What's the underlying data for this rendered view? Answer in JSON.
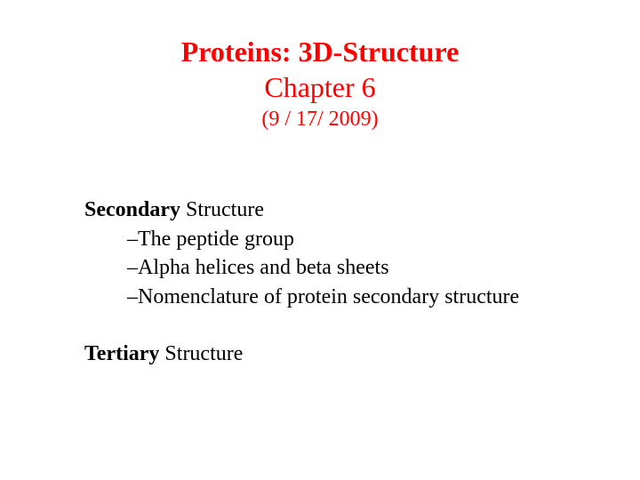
{
  "colors": {
    "title": "#ff0000",
    "body": "#000000",
    "background": "#ffffff"
  },
  "title": {
    "main": "Proteins: 3D-Structure",
    "chapter": "Chapter 6",
    "date": "(9 / 17/ 2009)"
  },
  "section1": {
    "bold": "Secondary",
    "rest": " Structure",
    "items": [
      "–The peptide group",
      "–Alpha helices and beta sheets",
      "–Nomenclature of protein secondary structure"
    ]
  },
  "section2": {
    "bold": "Tertiary",
    "rest": " Structure"
  }
}
